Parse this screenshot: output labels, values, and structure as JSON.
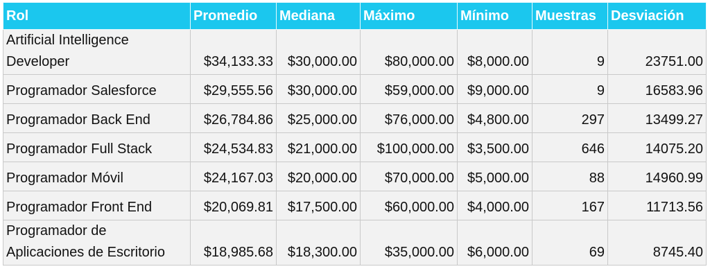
{
  "table": {
    "columns": [
      "Rol",
      "Promedio",
      "Mediana",
      "Máximo",
      "Mínimo",
      "Muestras",
      "Desviación"
    ],
    "rows": [
      [
        "Artificial Intelligence Developer",
        "$34,133.33",
        "$30,000.00",
        "$80,000.00",
        "$8,000.00",
        "9",
        "23751.00"
      ],
      [
        "Programador Salesforce",
        "$29,555.56",
        "$30,000.00",
        "$59,000.00",
        "$9,000.00",
        "9",
        "16583.96"
      ],
      [
        "Programador Back End",
        "$26,784.86",
        "$25,000.00",
        "$76,000.00",
        "$4,800.00",
        "297",
        "13499.27"
      ],
      [
        "Programador Full Stack",
        "$24,534.83",
        "$21,000.00",
        "$100,000.00",
        "$3,500.00",
        "646",
        "14075.20"
      ],
      [
        "Programador Móvil",
        "$24,167.03",
        "$20,000.00",
        "$70,000.00",
        "$5,000.00",
        "88",
        "14960.99"
      ],
      [
        "Programador Front End",
        "$20,069.81",
        "$17,500.00",
        "$60,000.00",
        "$4,000.00",
        "167",
        "11713.56"
      ],
      [
        "Programador de Aplicaciones de Escritorio",
        "$18,985.68",
        "$18,300.00",
        "$35,000.00",
        "$6,000.00",
        "69",
        "8745.40"
      ]
    ]
  },
  "colors": {
    "header_bg": "#1bc7ee",
    "header_text": "#ffffff",
    "row_bg": "#f2f2f2"
  }
}
